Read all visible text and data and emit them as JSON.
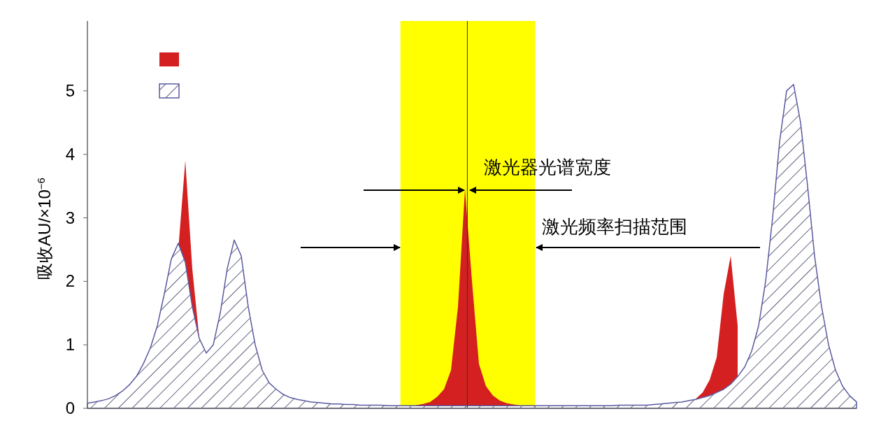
{
  "chart_data": {
    "type": "area",
    "ylabel": "吸收AU/×10$^{−6}$",
    "categories": [
      null,
      null,
      null,
      null,
      null,
      null,
      null,
      null,
      null,
      null,
      null,
      null,
      null,
      null,
      null,
      null,
      null,
      null,
      null,
      null,
      null,
      null,
      null,
      null,
      null,
      null,
      null,
      null,
      null,
      null,
      null,
      null,
      null,
      null,
      null,
      null,
      null,
      null,
      null,
      null,
      null,
      null,
      null,
      null,
      null,
      null,
      null,
      null,
      null,
      null,
      null,
      null,
      null,
      null,
      null,
      null,
      null,
      null,
      null,
      null,
      null,
      null,
      null,
      null,
      null,
      null,
      null,
      null,
      null,
      null,
      null,
      null,
      null,
      null,
      null,
      null,
      null,
      null,
      null,
      null,
      null,
      null,
      null,
      null,
      null,
      null,
      null,
      null,
      null,
      null,
      null,
      null,
      null,
      null,
      null,
      null,
      null,
      null,
      null,
      null,
      null,
      null,
      null,
      null,
      null,
      null,
      null,
      null,
      null,
      null,
      null
    ],
    "series": [
      {
        "color": "#d42020",
        "values": [
          null,
          null,
          null,
          null,
          null,
          null,
          null,
          null,
          null,
          null,
          null,
          null,
          null,
          2.5,
          3.9,
          2.2,
          1.1,
          null,
          null,
          null,
          null,
          null,
          null,
          null,
          null,
          null,
          null,
          null,
          null,
          null,
          null,
          null,
          null,
          null,
          null,
          null,
          null,
          null,
          null,
          null,
          null,
          null,
          null,
          null,
          null,
          null,
          null,
          0.05,
          0.07,
          0.1,
          0.18,
          0.3,
          0.6,
          1.6,
          3.45,
          2.0,
          0.7,
          0.35,
          0.2,
          0.12,
          0.08,
          0.06,
          0.04,
          null,
          null,
          null,
          null,
          null,
          null,
          null,
          null,
          null,
          null,
          null,
          null,
          null,
          null,
          null,
          null,
          null,
          null,
          null,
          null,
          null,
          null,
          0.07,
          0.1,
          0.15,
          0.25,
          0.45,
          0.8,
          1.8,
          2.4,
          1.3,
          null,
          null,
          null,
          null,
          null,
          null,
          null,
          null,
          null,
          null,
          null,
          null,
          null,
          null,
          null,
          null,
          null
        ]
      },
      {
        "color": "#5a5aa0",
        "values": [
          0.08,
          0.1,
          0.12,
          0.15,
          0.2,
          0.27,
          0.37,
          0.5,
          0.7,
          0.95,
          1.3,
          1.8,
          2.35,
          2.6,
          2.3,
          1.6,
          1.1,
          0.87,
          1.0,
          1.5,
          2.2,
          2.65,
          2.4,
          1.6,
          1.0,
          0.6,
          0.4,
          0.3,
          0.22,
          0.17,
          0.14,
          0.12,
          0.1,
          0.09,
          0.08,
          0.07,
          0.07,
          0.06,
          0.06,
          0.05,
          0.05,
          0.05,
          0.05,
          0.04,
          0.04,
          0.04,
          0.04,
          0.04,
          0.04,
          0.04,
          0.04,
          0.04,
          0.04,
          0.04,
          0.04,
          0.04,
          0.04,
          0.04,
          0.04,
          0.04,
          0.04,
          0.04,
          0.04,
          0.04,
          0.04,
          0.04,
          0.04,
          0.04,
          0.04,
          0.04,
          0.04,
          0.04,
          0.04,
          0.04,
          0.04,
          0.04,
          0.05,
          0.05,
          0.05,
          0.05,
          0.05,
          0.06,
          0.07,
          0.08,
          0.09,
          0.1,
          0.12,
          0.14,
          0.17,
          0.2,
          0.25,
          0.3,
          0.38,
          0.5,
          0.65,
          0.9,
          1.3,
          2.0,
          3.0,
          4.2,
          5.0,
          5.1,
          4.5,
          3.5,
          2.4,
          1.6,
          1.0,
          0.6,
          0.35,
          0.2,
          0.1
        ]
      }
    ],
    "ylim": [
      0,
      6.1
    ],
    "yticks": [
      0,
      1,
      2,
      3,
      4,
      5
    ],
    "grid": false,
    "annotations": [
      "激光器光谱宽度",
      "激光频率扫描范围"
    ]
  }
}
